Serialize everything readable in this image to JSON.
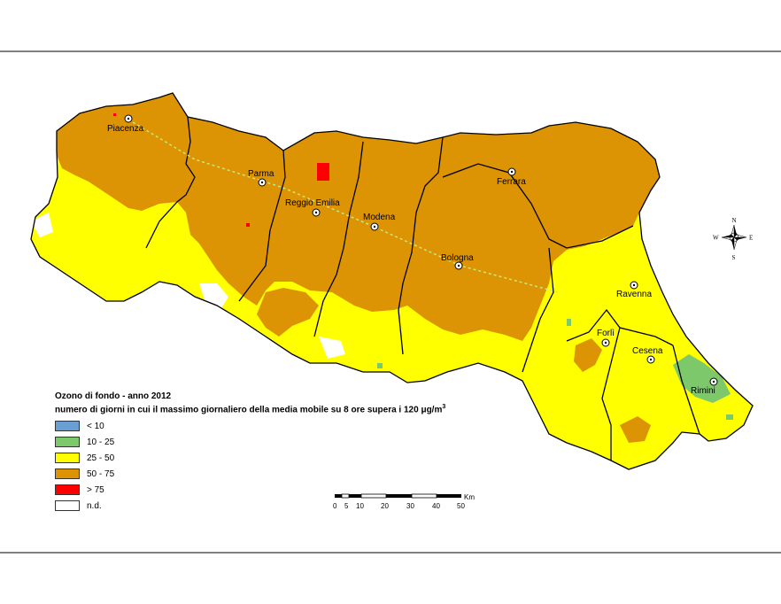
{
  "legend": {
    "title_line1": "Ozono di fondo - anno 2012",
    "title_line2_main": "numero di giorni in cui il massimo giornaliero della media mobile su 8 ore supera i 120 μg/m",
    "title_line2_sup": "3",
    "items": [
      {
        "label": "< 10",
        "color": "#6a9fd4"
      },
      {
        "label": "10 - 25",
        "color": "#7ec86c"
      },
      {
        "label": "25 - 50",
        "color": "#ffff00"
      },
      {
        "label": "50 - 75",
        "color": "#dc9404"
      },
      {
        "label": "> 75",
        "color": "#ff0000"
      },
      {
        "label": "n.d.",
        "color": "#ffffff"
      }
    ]
  },
  "cities": [
    {
      "name": "Piacenza"
    },
    {
      "name": "Parma"
    },
    {
      "name": "Reggio Emilia"
    },
    {
      "name": "Modena"
    },
    {
      "name": "Ferrara"
    },
    {
      "name": "Bologna"
    },
    {
      "name": "Ravenna"
    },
    {
      "name": "Forlì"
    },
    {
      "name": "Cesena"
    },
    {
      "name": "Rimini"
    }
  ],
  "scalebar": {
    "unit": "Km",
    "ticks": [
      "0",
      "5",
      "10",
      "20",
      "30",
      "40",
      "50"
    ]
  },
  "compass": {
    "n": "N",
    "s": "S",
    "e": "E",
    "w": "W"
  }
}
